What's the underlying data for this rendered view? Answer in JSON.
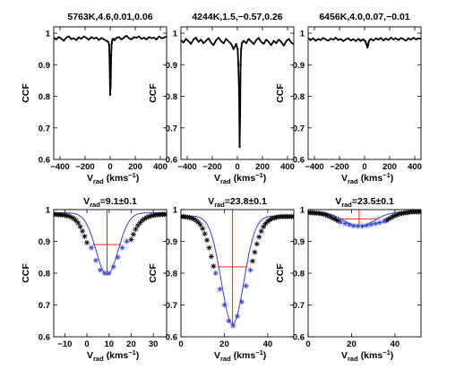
{
  "figure": {
    "background": "#ffffff",
    "colors": {
      "axes": "#000000",
      "ccf_curve": "#000000",
      "gaussian_fit": "#3344cc",
      "fit_points": "#3344cc",
      "guide_lines": "#ff0000"
    }
  },
  "chart_data": [
    {
      "type": "line",
      "title": "5763K,4.6,0.01,0.06",
      "xlabel_main": "V",
      "xlabel_sub": "rad",
      "xlabel_unit": "(kms",
      "xlabel_sup": "−1",
      "xlabel_close": ")",
      "ylabel": "CCF",
      "xlim": [
        -450,
        450
      ],
      "ylim": [
        0.6,
        1.02
      ],
      "xticks": [
        -400,
        -200,
        0,
        200,
        400
      ],
      "xtick_labels": [
        "−400",
        "−200",
        "0",
        "200",
        "400"
      ],
      "yticks": [
        0.6,
        0.7,
        0.8,
        0.9,
        1.0
      ],
      "ytick_labels": [
        "0.6",
        "0.7",
        "0.8",
        "0.9",
        "1"
      ],
      "series": [
        {
          "marker": "dot",
          "x": [
            -450,
            -430,
            -410,
            -390,
            -370,
            -350,
            -330,
            -310,
            -290,
            -270,
            -250,
            -230,
            -210,
            -190,
            -170,
            -150,
            -130,
            -110,
            -90,
            -70,
            -50,
            -30,
            -15,
            -8,
            -4,
            0,
            4,
            8,
            12,
            16,
            20,
            26,
            36,
            50,
            70,
            90,
            110,
            130,
            150,
            170,
            190,
            210,
            230,
            250,
            270,
            290,
            310,
            330,
            350,
            370,
            390,
            410,
            430,
            450
          ],
          "y": [
            0.986,
            0.98,
            0.988,
            0.983,
            0.976,
            0.986,
            0.99,
            0.981,
            0.984,
            0.978,
            0.987,
            0.982,
            0.99,
            0.985,
            0.979,
            0.988,
            0.983,
            0.986,
            0.978,
            0.985,
            0.98,
            0.976,
            0.972,
            0.962,
            0.9,
            0.805,
            0.84,
            0.93,
            0.968,
            0.975,
            0.98,
            0.982,
            0.978,
            0.985,
            0.988,
            0.98,
            0.986,
            0.992,
            0.984,
            0.98,
            0.988,
            0.985,
            0.99,
            0.982,
            0.986,
            0.98,
            0.988,
            0.984,
            0.986,
            0.98,
            0.99,
            0.984,
            0.986,
            0.99
          ]
        }
      ]
    },
    {
      "type": "line",
      "title": "4244K,1.5,−0.57,0.26",
      "xlabel_main": "V",
      "xlabel_sub": "rad",
      "xlabel_unit": "(kms",
      "xlabel_sup": "−1",
      "xlabel_close": ")",
      "ylabel": "CCF",
      "xlim": [
        -450,
        450
      ],
      "ylim": [
        0.6,
        1.02
      ],
      "xticks": [
        -400,
        -200,
        0,
        200,
        400
      ],
      "xtick_labels": [
        "−400",
        "−200",
        "0",
        "200",
        "400"
      ],
      "yticks": [
        0.6,
        0.7,
        0.8,
        0.9,
        1.0
      ],
      "ytick_labels": [
        "0.6",
        "0.7",
        "0.8",
        "0.9",
        "1"
      ],
      "series": [
        {
          "marker": "dot",
          "x": [
            -450,
            -430,
            -410,
            -390,
            -370,
            -350,
            -330,
            -310,
            -290,
            -270,
            -250,
            -230,
            -210,
            -190,
            -170,
            -150,
            -130,
            -110,
            -90,
            -70,
            -50,
            -30,
            -10,
            2,
            8,
            14,
            18,
            22,
            26,
            30,
            36,
            50,
            70,
            90,
            110,
            130,
            150,
            170,
            190,
            210,
            230,
            250,
            270,
            290,
            310,
            330,
            350,
            370,
            390,
            410,
            430,
            450
          ],
          "y": [
            0.978,
            0.97,
            0.982,
            0.975,
            0.966,
            0.98,
            0.986,
            0.972,
            0.98,
            0.968,
            0.976,
            0.984,
            0.97,
            0.962,
            0.978,
            0.986,
            0.975,
            0.968,
            0.982,
            0.974,
            0.966,
            0.95,
            0.965,
            0.95,
            0.9,
            0.8,
            0.64,
            0.74,
            0.9,
            0.95,
            0.968,
            0.976,
            0.968,
            0.982,
            0.974,
            0.965,
            0.978,
            0.985,
            0.972,
            0.966,
            0.98,
            0.972,
            0.962,
            0.976,
            0.968,
            0.98,
            0.972,
            0.96,
            0.975,
            0.982,
            0.97,
            0.965
          ]
        }
      ]
    },
    {
      "type": "line",
      "title": "6456K,4.0,0.07,−0.01",
      "xlabel_main": "V",
      "xlabel_sub": "rad",
      "xlabel_unit": "(kms",
      "xlabel_sup": "−1",
      "xlabel_close": ")",
      "ylabel": "CCF",
      "xlim": [
        -450,
        450
      ],
      "ylim": [
        0.6,
        1.02
      ],
      "xticks": [
        -400,
        -200,
        0,
        200,
        400
      ],
      "xtick_labels": [
        "−400",
        "−200",
        "0",
        "200",
        "400"
      ],
      "yticks": [
        0.6,
        0.7,
        0.8,
        0.9,
        1.0
      ],
      "ytick_labels": [
        "0.6",
        "0.7",
        "0.8",
        "0.9",
        "1"
      ],
      "series": [
        {
          "marker": "dot",
          "x": [
            -450,
            -430,
            -410,
            -390,
            -370,
            -350,
            -330,
            -310,
            -290,
            -270,
            -250,
            -230,
            -210,
            -190,
            -170,
            -150,
            -130,
            -110,
            -90,
            -70,
            -50,
            -30,
            -10,
            5,
            12,
            18,
            23,
            28,
            33,
            40,
            50,
            70,
            90,
            110,
            130,
            150,
            170,
            190,
            210,
            230,
            250,
            270,
            290,
            310,
            330,
            350,
            370,
            390,
            410,
            430,
            450
          ],
          "y": [
            0.985,
            0.978,
            0.984,
            0.976,
            0.982,
            0.978,
            0.985,
            0.98,
            0.976,
            0.983,
            0.979,
            0.986,
            0.978,
            0.982,
            0.975,
            0.98,
            0.984,
            0.977,
            0.981,
            0.975,
            0.982,
            0.976,
            0.98,
            0.975,
            0.968,
            0.962,
            0.955,
            0.962,
            0.972,
            0.978,
            0.982,
            0.976,
            0.984,
            0.979,
            0.985,
            0.977,
            0.983,
            0.978,
            0.986,
            0.98,
            0.984,
            0.978,
            0.985,
            0.981,
            0.976,
            0.984,
            0.979,
            0.986,
            0.98,
            0.984,
            0.982
          ]
        }
      ]
    },
    {
      "type": "line",
      "title_main": "V",
      "title_sub": "rad",
      "title_value": "=9.1±0.1",
      "xlabel_main": "V",
      "xlabel_sub": "rad",
      "xlabel_unit": "(kms",
      "xlabel_sup": "−1",
      "xlabel_close": ")",
      "ylabel": "CCF",
      "xlim": [
        -15,
        36
      ],
      "ylim": [
        0.6,
        1.0
      ],
      "xticks": [
        -10,
        0,
        10,
        20,
        30
      ],
      "xtick_labels": [
        "−10",
        "0",
        "10",
        "20",
        "30"
      ],
      "yticks": [
        0.6,
        0.7,
        0.8,
        0.9,
        1.0
      ],
      "ytick_labels": [
        "0.6",
        "0.7",
        "0.8",
        "0.9",
        "1"
      ],
      "gaussian": {
        "center": 9.1,
        "depth": 0.195,
        "sigma": 5.0,
        "baseline": 0.99,
        "half_level": 0.89
      },
      "series": [
        {
          "name_role": "ccf_points",
          "marker": "star",
          "x": [
            -15,
            -14,
            -13,
            -12,
            -11,
            -10,
            -9,
            -8,
            -7,
            -6,
            -5,
            -4,
            -3,
            -2,
            -1,
            0,
            20,
            21,
            22,
            23,
            24,
            25,
            26,
            27,
            28,
            29,
            30,
            31,
            32,
            33,
            34,
            35,
            36
          ],
          "y": [
            0.985,
            0.985,
            0.984,
            0.984,
            0.983,
            0.982,
            0.981,
            0.979,
            0.976,
            0.972,
            0.966,
            0.958,
            0.946,
            0.932,
            0.916,
            0.896,
            0.906,
            0.922,
            0.938,
            0.95,
            0.959,
            0.966,
            0.971,
            0.975,
            0.978,
            0.98,
            0.982,
            0.983,
            0.984,
            0.984,
            0.985,
            0.985,
            0.985
          ]
        },
        {
          "name_role": "fit_points",
          "marker": "star",
          "x": [
            2,
            4,
            6,
            8,
            10,
            12,
            14,
            16,
            18
          ],
          "y": [
            0.88,
            0.84,
            0.81,
            0.8,
            0.8,
            0.82,
            0.85,
            0.88,
            0.9
          ]
        }
      ]
    },
    {
      "type": "line",
      "title_main": "V",
      "title_sub": "rad",
      "title_value": "=23.8±0.1",
      "xlabel_main": "V",
      "xlabel_sub": "rad",
      "xlabel_unit": "(kms",
      "xlabel_sup": "−1",
      "xlabel_close": ")",
      "ylabel": "CCF",
      "xlim": [
        0,
        52
      ],
      "ylim": [
        0.6,
        1.0
      ],
      "xticks": [
        0,
        20,
        40
      ],
      "xtick_labels": [
        "0",
        "20",
        "40"
      ],
      "yticks": [
        0.6,
        0.7,
        0.8,
        0.9,
        1.0
      ],
      "ytick_labels": [
        "0.6",
        "0.7",
        "0.8",
        "0.9",
        "1"
      ],
      "gaussian": {
        "center": 23.8,
        "depth": 0.34,
        "sigma": 5.2,
        "baseline": 0.98,
        "half_level": 0.82
      },
      "series": [
        {
          "name_role": "ccf_points",
          "marker": "star",
          "x": [
            0,
            1,
            2,
            3,
            4,
            5,
            6,
            7,
            8,
            9,
            10,
            11,
            12,
            13,
            14,
            15,
            33,
            34,
            35,
            36,
            37,
            38,
            39,
            40,
            41,
            42,
            43,
            44,
            45,
            46,
            47,
            48,
            49,
            50,
            51,
            52
          ],
          "y": [
            0.978,
            0.978,
            0.977,
            0.976,
            0.975,
            0.973,
            0.97,
            0.966,
            0.96,
            0.952,
            0.94,
            0.924,
            0.904,
            0.88,
            0.852,
            0.822,
            0.838,
            0.866,
            0.892,
            0.914,
            0.932,
            0.946,
            0.956,
            0.963,
            0.968,
            0.972,
            0.974,
            0.976,
            0.977,
            0.978,
            0.978,
            0.978,
            0.978,
            0.978,
            0.978,
            0.978
          ]
        },
        {
          "name_role": "fit_points",
          "marker": "star",
          "x": [
            16,
            18,
            20,
            22,
            24,
            26,
            28,
            30,
            32
          ],
          "y": [
            0.8,
            0.75,
            0.7,
            0.65,
            0.635,
            0.665,
            0.71,
            0.76,
            0.81
          ]
        }
      ]
    },
    {
      "type": "line",
      "title_main": "V",
      "title_sub": "rad",
      "title_value": "=23.5±0.1",
      "xlabel_main": "V",
      "xlabel_sub": "rad",
      "xlabel_unit": "(kms",
      "xlabel_sup": "−1",
      "xlabel_close": ")",
      "ylabel": "CCF",
      "xlim": [
        0,
        52
      ],
      "ylim": [
        0.6,
        1.0
      ],
      "xticks": [
        0,
        20,
        40
      ],
      "xtick_labels": [
        "0",
        "20",
        "40"
      ],
      "yticks": [
        0.6,
        0.7,
        0.8,
        0.9,
        1.0
      ],
      "ytick_labels": [
        "0.6",
        "0.7",
        "0.8",
        "0.9",
        "1"
      ],
      "gaussian": {
        "center": 23.5,
        "depth": 0.045,
        "sigma": 7.0,
        "baseline": 0.993,
        "half_level": 0.971
      },
      "series": [
        {
          "name_role": "ccf_points",
          "marker": "star",
          "x": [
            0,
            1,
            2,
            3,
            4,
            5,
            6,
            7,
            8,
            9,
            10,
            11,
            12,
            13,
            14,
            36,
            37,
            38,
            39,
            40,
            41,
            42,
            43,
            44,
            45,
            46,
            47,
            48,
            49,
            50,
            51,
            52
          ],
          "y": [
            0.99,
            0.99,
            0.99,
            0.989,
            0.989,
            0.988,
            0.987,
            0.986,
            0.984,
            0.981,
            0.978,
            0.975,
            0.972,
            0.968,
            0.964,
            0.966,
            0.97,
            0.974,
            0.978,
            0.981,
            0.984,
            0.986,
            0.988,
            0.989,
            0.99,
            0.991,
            0.992,
            0.993,
            0.993,
            0.993,
            0.993,
            0.993
          ]
        },
        {
          "name_role": "fit_points",
          "marker": "star",
          "x": [
            15,
            17,
            19,
            21,
            23,
            25,
            27,
            29,
            31,
            33,
            35
          ],
          "y": [
            0.961,
            0.956,
            0.952,
            0.949,
            0.948,
            0.948,
            0.95,
            0.953,
            0.956,
            0.959,
            0.963
          ]
        }
      ]
    }
  ]
}
